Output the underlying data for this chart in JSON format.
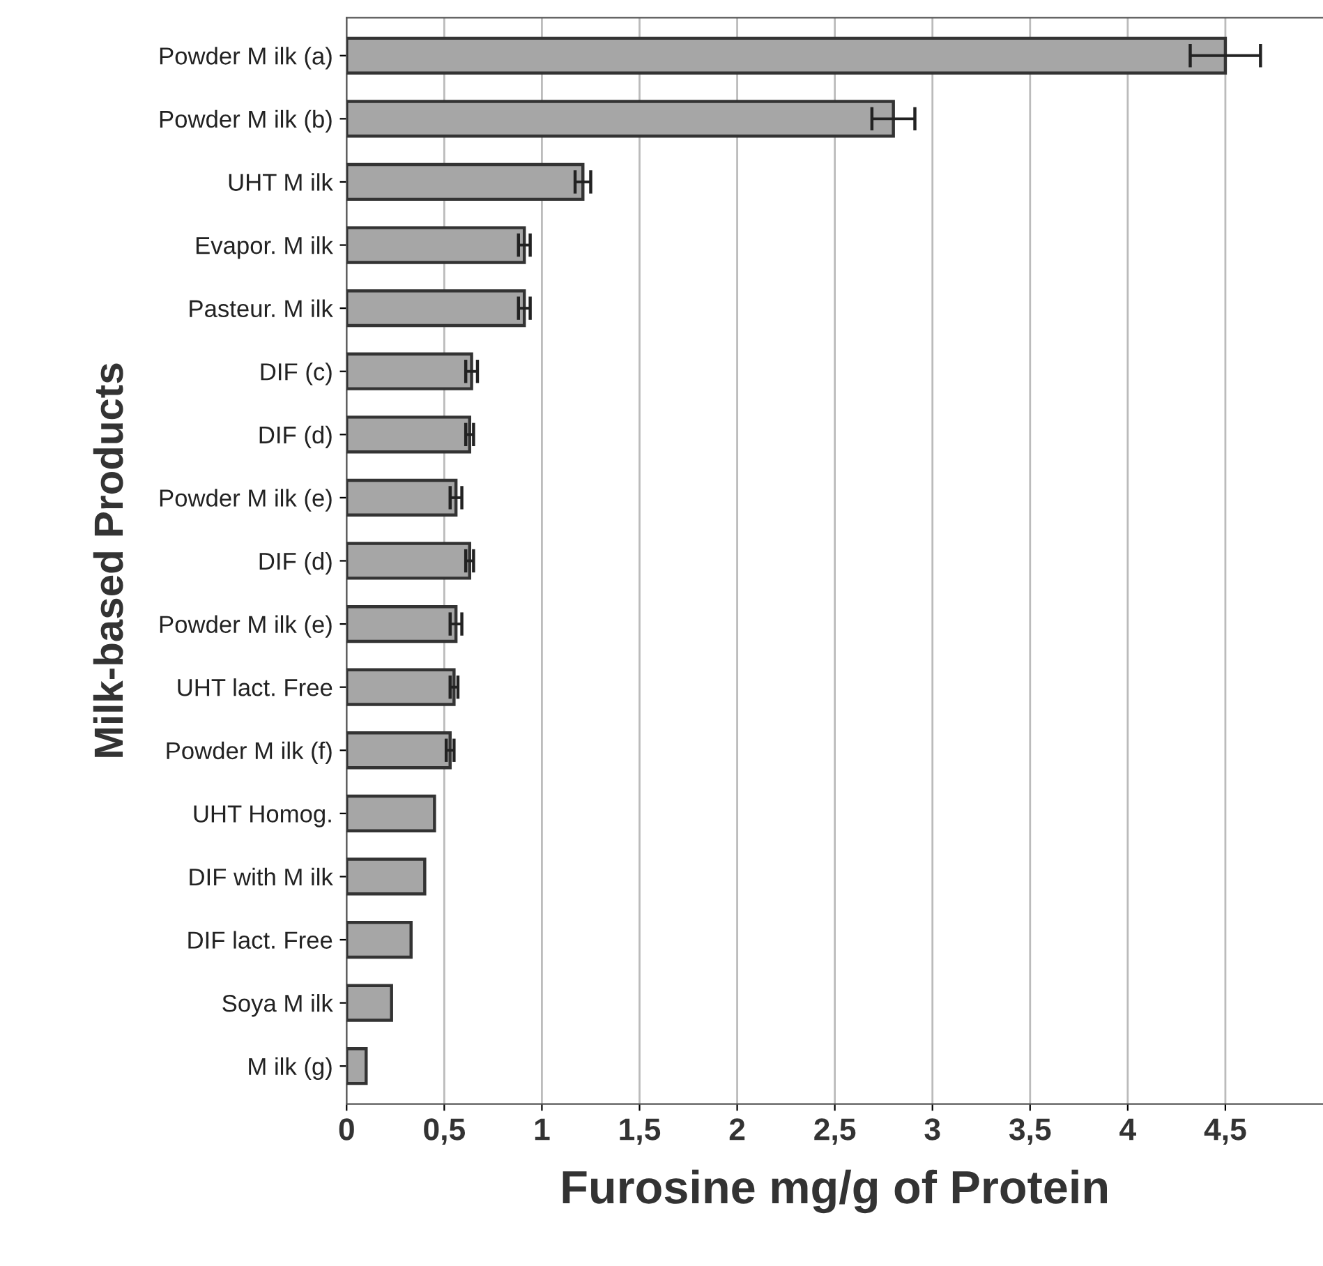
{
  "chart_data": {
    "type": "bar",
    "orientation": "horizontal",
    "xlabel": "Furosine mg/g of Protein",
    "ylabel": "Milk-based Products",
    "categories": [
      "Powder M ilk (a)",
      "Powder M ilk (b)",
      "UHT M ilk",
      "Evapor. M ilk",
      "Pasteur. M ilk",
      "DIF (c)",
      "DIF (d)",
      "Powder M ilk (e)",
      "DIF (d)",
      "Powder M ilk (e)",
      "UHT lact. Free",
      "Powder M ilk (f)",
      "UHT Homog.",
      "DIF with M ilk",
      "DIF lact. Free",
      "Soya M ilk",
      "M ilk (g)"
    ],
    "values": [
      4.5,
      2.8,
      1.21,
      0.91,
      0.91,
      0.64,
      0.63,
      0.56,
      0.63,
      0.56,
      0.55,
      0.53,
      0.45,
      0.4,
      0.33,
      0.23,
      0.1
    ],
    "errors": [
      0.18,
      0.11,
      0.04,
      0.03,
      0.03,
      0.03,
      0.02,
      0.03,
      0.02,
      0.03,
      0.02,
      0.02,
      null,
      null,
      null,
      null,
      null
    ],
    "color": "#a6a6a6",
    "xlim": [
      0,
      5
    ],
    "xticks": [
      0,
      {
        "value": 0.5,
        "label": "0,5"
      },
      1,
      {
        "value": 1.5,
        "label": "1,5"
      },
      2,
      {
        "value": 2.5,
        "label": "2,5"
      },
      3,
      {
        "value": 3.5,
        "label": "3,5"
      },
      4,
      {
        "value": 4.5,
        "label": "4,5"
      }
    ],
    "grid": "x",
    "legend": false
  }
}
